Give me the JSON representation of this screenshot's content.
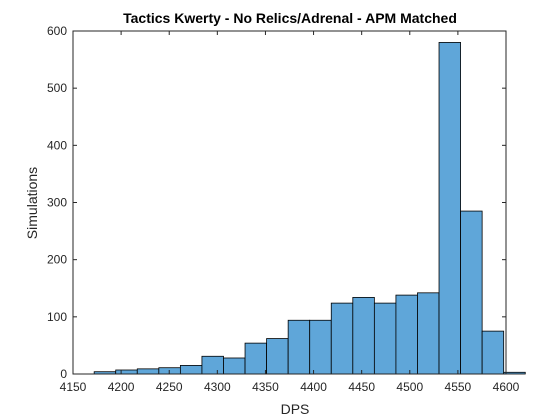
{
  "chart_data": {
    "type": "bar",
    "title": "Tactics Kwerty - No Relics/Adrenal - APM Matched",
    "xlabel": "DPS",
    "ylabel": "Simulations",
    "xlim": [
      4150,
      4600
    ],
    "ylim": [
      0,
      600
    ],
    "xticks": [
      4150,
      4200,
      4250,
      4300,
      4350,
      4400,
      4450,
      4500,
      4550,
      4600
    ],
    "yticks": [
      0,
      100,
      200,
      300,
      400,
      500,
      600
    ],
    "grid": false,
    "bar_color": "#5fa6d9",
    "edge_color": "#000000",
    "bin_start": 4172,
    "bin_width": 22.4,
    "values": [
      4,
      7,
      9,
      11,
      15,
      31,
      28,
      54,
      62,
      94,
      94,
      124,
      134,
      124,
      138,
      142,
      580,
      285,
      75,
      3
    ]
  }
}
